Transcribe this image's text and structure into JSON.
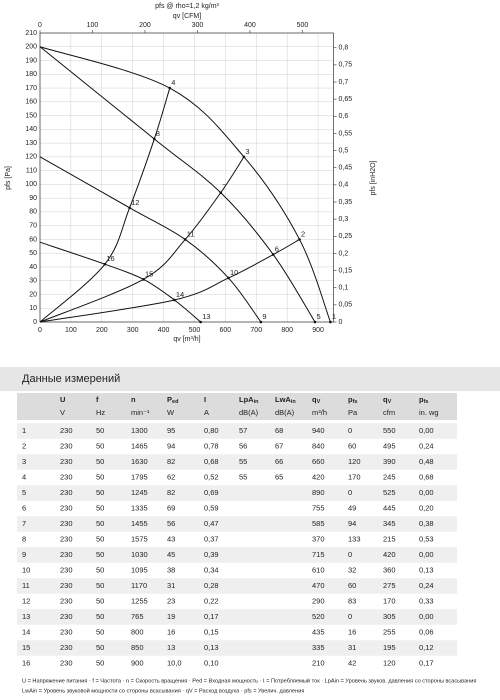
{
  "chart_data": {
    "type": "line",
    "title": "pfs @ rho=1,2 kg/m³",
    "x_label": "qv [m³/h]",
    "x2_label": "qv [CFM]",
    "y_label": "pfs [Pa]",
    "y2_label": "pfs [inH2O]",
    "xlim": [
      0,
      950
    ],
    "xticks": [
      0,
      100,
      200,
      300,
      400,
      500,
      600,
      700,
      800,
      900
    ],
    "x2lim": [
      0,
      559.2
    ],
    "x2ticks": [
      0,
      100,
      200,
      300,
      400,
      500
    ],
    "ylim": [
      0,
      210
    ],
    "yticks": [
      0,
      10,
      20,
      30,
      40,
      50,
      60,
      70,
      80,
      90,
      100,
      110,
      120,
      130,
      140,
      150,
      160,
      170,
      180,
      190,
      200,
      210
    ],
    "y2lim": [
      0,
      0.843
    ],
    "y2ticks": [
      0,
      {
        "value": 0.05,
        "label": "0,05"
      },
      {
        "value": 0.1,
        "label": "0,1"
      },
      {
        "value": 0.15,
        "label": "0,15"
      },
      {
        "value": 0.2,
        "label": "0,2"
      },
      {
        "value": 0.25,
        "label": "0,25"
      },
      {
        "value": 0.3,
        "label": "0,3"
      },
      {
        "value": 0.35,
        "label": "0,35"
      },
      {
        "value": 0.4,
        "label": "0,4"
      },
      {
        "value": 0.45,
        "label": "0,45"
      },
      {
        "value": 0.5,
        "label": "0,5"
      },
      {
        "value": 0.55,
        "label": "0,55"
      },
      {
        "value": 0.6,
        "label": "0,6"
      },
      {
        "value": 0.65,
        "label": "0,65"
      },
      {
        "value": 0.7,
        "label": "0,7"
      },
      {
        "value": 0.75,
        "label": "0,75"
      },
      {
        "value": 0.8,
        "label": "0,8"
      }
    ],
    "grid": true,
    "color": "#111111",
    "series": [
      {
        "x": [
          0,
          420,
          660,
          840,
          940
        ],
        "values": [
          200,
          170,
          120,
          60,
          0
        ]
      },
      {
        "x": [
          0,
          370,
          585,
          755,
          890
        ],
        "values": [
          200,
          133,
          94,
          49,
          0
        ]
      },
      {
        "x": [
          0,
          290,
          470,
          610,
          715
        ],
        "values": [
          120,
          83,
          60,
          32,
          0
        ]
      },
      {
        "x": [
          0,
          210,
          335,
          435,
          520
        ],
        "values": [
          58,
          42,
          31,
          16,
          0
        ]
      },
      {
        "x": [
          0,
          210,
          290,
          370,
          420
        ],
        "values": [
          0,
          42,
          83,
          133,
          170
        ]
      },
      {
        "x": [
          0,
          335,
          470,
          585,
          660
        ],
        "values": [
          0,
          31,
          60,
          94,
          120
        ]
      },
      {
        "x": [
          0,
          435,
          610,
          755,
          840
        ],
        "values": [
          0,
          16,
          32,
          49,
          60
        ]
      }
    ],
    "points": [
      {
        "label": "1",
        "x": 940,
        "y": 0
      },
      {
        "label": "2",
        "x": 840,
        "y": 60
      },
      {
        "label": "3",
        "x": 660,
        "y": 120
      },
      {
        "label": "4",
        "x": 420,
        "y": 170
      },
      {
        "label": "5",
        "x": 890,
        "y": 0
      },
      {
        "label": "6",
        "x": 755,
        "y": 49
      },
      {
        "label": "7",
        "x": 585,
        "y": 94
      },
      {
        "label": "8",
        "x": 370,
        "y": 133
      },
      {
        "label": "9",
        "x": 715,
        "y": 0
      },
      {
        "label": "10",
        "x": 610,
        "y": 32
      },
      {
        "label": "11",
        "x": 470,
        "y": 60
      },
      {
        "label": "12",
        "x": 290,
        "y": 83
      },
      {
        "label": "13",
        "x": 520,
        "y": 0
      },
      {
        "label": "14",
        "x": 435,
        "y": 16
      },
      {
        "label": "15",
        "x": 335,
        "y": 31
      },
      {
        "label": "16",
        "x": 210,
        "y": 42
      }
    ]
  },
  "table": {
    "title": "Данные измерений",
    "headers": [
      [
        "U"
      ],
      [
        "f"
      ],
      [
        "n"
      ],
      [
        "P",
        "ed"
      ],
      [
        "I"
      ],
      [
        "LpA",
        "in"
      ],
      [
        "LwA",
        "in"
      ],
      [
        "q",
        "V"
      ],
      [
        "p",
        "fs"
      ],
      [
        "q",
        "V"
      ],
      [
        "p",
        "fs"
      ]
    ],
    "units": [
      "V",
      "Hz",
      "min⁻¹",
      "W",
      "A",
      "dB(A)",
      "dB(A)",
      "m³/h",
      "Pa",
      "cfm",
      "in. wg"
    ],
    "rows": [
      [
        "1",
        "230",
        "50",
        "1300",
        "95",
        "0,80",
        "57",
        "68",
        "940",
        "0",
        "550",
        "0,00"
      ],
      [
        "2",
        "230",
        "50",
        "1465",
        "94",
        "0,78",
        "56",
        "67",
        "840",
        "60",
        "495",
        "0,24"
      ],
      [
        "3",
        "230",
        "50",
        "1630",
        "82",
        "0,68",
        "55",
        "66",
        "660",
        "120",
        "390",
        "0,48"
      ],
      [
        "4",
        "230",
        "50",
        "1795",
        "62",
        "0,52",
        "55",
        "65",
        "420",
        "170",
        "245",
        "0,68"
      ],
      [
        "5",
        "230",
        "50",
        "1245",
        "82",
        "0,69",
        null,
        null,
        "890",
        "0",
        "525",
        "0,00"
      ],
      [
        "6",
        "230",
        "50",
        "1335",
        "69",
        "0,59",
        null,
        null,
        "755",
        "49",
        "445",
        "0,20"
      ],
      [
        "7",
        "230",
        "50",
        "1455",
        "56",
        "0,47",
        null,
        null,
        "585",
        "94",
        "345",
        "0,38"
      ],
      [
        "8",
        "230",
        "50",
        "1575",
        "43",
        "0,37",
        null,
        null,
        "370",
        "133",
        "215",
        "0,53"
      ],
      [
        "9",
        "230",
        "50",
        "1030",
        "45",
        "0,39",
        null,
        null,
        "715",
        "0",
        "420",
        "0,00"
      ],
      [
        "10",
        "230",
        "50",
        "1095",
        "38",
        "0,34",
        null,
        null,
        "610",
        "32",
        "360",
        "0,13"
      ],
      [
        "11",
        "230",
        "50",
        "1170",
        "31",
        "0,28",
        null,
        null,
        "470",
        "60",
        "275",
        "0,24"
      ],
      [
        "12",
        "230",
        "50",
        "1255",
        "23",
        "0,22",
        null,
        null,
        "290",
        "83",
        "170",
        "0,33"
      ],
      [
        "13",
        "230",
        "50",
        "765",
        "19",
        "0,17",
        null,
        null,
        "520",
        "0",
        "305",
        "0,00"
      ],
      [
        "14",
        "230",
        "50",
        "800",
        "16",
        "0,15",
        null,
        null,
        "435",
        "16",
        "255",
        "0,06"
      ],
      [
        "15",
        "230",
        "50",
        "850",
        "13",
        "0,13",
        null,
        null,
        "335",
        "31",
        "195",
        "0,12"
      ],
      [
        "16",
        "230",
        "50",
        "900",
        "10,0",
        "0,10",
        null,
        null,
        "210",
        "42",
        "120",
        "0,17"
      ]
    ],
    "footnotes": [
      "U = Напряжение питания · f = Частота · n = Скорость вращения · Ped = Входная мощность · I = Потребляемый ток · LpAin = Уровень звуков. давления со стороны всасывания",
      "LwAin = Уровень звуковой мощности со стороны всасывания · qV = Расход воздуха · pfs = Увелич. давления"
    ]
  }
}
